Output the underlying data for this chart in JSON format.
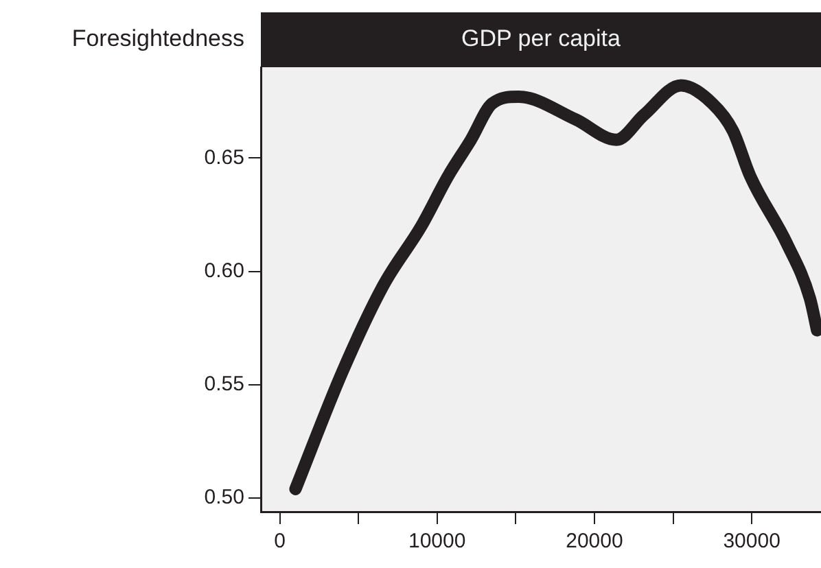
{
  "chart_data": {
    "type": "line",
    "title": "GDP per capita",
    "ylabel": "Foresightedness",
    "x": [
      1000,
      4000,
      6600,
      9000,
      10700,
      12150,
      13500,
      15160,
      18800,
      21400,
      23150,
      25500,
      27500,
      28800,
      29900,
      32250,
      33700,
      34150
    ],
    "series": [
      {
        "color": "#231f20",
        "values": [
          0.504,
          0.556,
          0.594,
          0.62,
          0.642,
          0.658,
          0.674,
          0.677,
          0.667,
          0.658,
          0.669,
          0.682,
          0.674,
          0.662,
          0.642,
          0.612,
          0.588,
          0.574
        ]
      }
    ],
    "xlim": [
      -1200,
      34400
    ],
    "xticks": [
      0,
      {
        "value": 5000,
        "label": null
      },
      10000,
      {
        "value": 15000,
        "label": null
      },
      20000,
      {
        "value": 25000,
        "label": null
      },
      30000
    ],
    "ylim": [
      0.494,
      0.69
    ],
    "yticks": [
      {
        "value": 0.5,
        "label": "0.50"
      },
      {
        "value": 0.55,
        "label": "0.55"
      },
      {
        "value": 0.6,
        "label": "0.60"
      },
      {
        "value": 0.65,
        "label": "0.65"
      }
    ],
    "grid": false,
    "legend": false,
    "marker": "none",
    "line_style": "solid"
  }
}
